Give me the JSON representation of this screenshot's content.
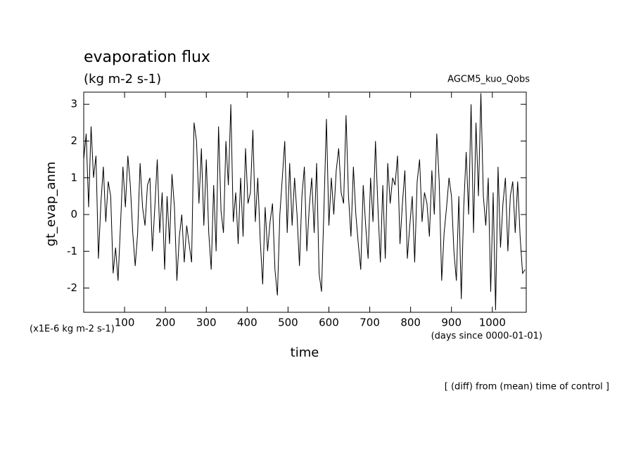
{
  "chart_data": {
    "type": "line",
    "title": "evaporation flux",
    "subtitle": "(kg m-2 s-1)",
    "annotation": "AGCM5_kuo_Qobs",
    "y_label": "gt_evap_anm",
    "y_units": "(x1E-6 kg m-2 s-1)",
    "x_label": "time",
    "x_units": "(days since 0000-01-01)",
    "footnote": "[ (diff) from (mean) time of control ]",
    "xlim": [
      0,
      1083
    ],
    "ylim": [
      -2.66,
      3.33
    ],
    "xticks": [
      100,
      200,
      300,
      400,
      500,
      600,
      700,
      800,
      900,
      1000
    ],
    "yticks": [
      -2,
      -1,
      0,
      1,
      2,
      3
    ],
    "x": [
      0,
      6,
      12,
      18,
      24,
      30,
      36,
      42,
      48,
      54,
      60,
      66,
      72,
      78,
      84,
      90,
      96,
      102,
      108,
      114,
      120,
      126,
      132,
      138,
      144,
      150,
      156,
      162,
      168,
      174,
      180,
      186,
      192,
      198,
      204,
      210,
      216,
      222,
      228,
      234,
      240,
      246,
      252,
      258,
      264,
      270,
      276,
      282,
      288,
      294,
      300,
      306,
      312,
      318,
      324,
      330,
      336,
      342,
      348,
      354,
      360,
      366,
      372,
      378,
      384,
      390,
      396,
      402,
      408,
      414,
      420,
      426,
      432,
      438,
      444,
      450,
      456,
      462,
      468,
      474,
      480,
      486,
      492,
      498,
      504,
      510,
      516,
      522,
      528,
      534,
      540,
      546,
      552,
      558,
      564,
      570,
      576,
      582,
      588,
      594,
      600,
      606,
      612,
      618,
      624,
      630,
      636,
      642,
      648,
      654,
      660,
      666,
      672,
      678,
      684,
      690,
      696,
      702,
      708,
      714,
      720,
      726,
      732,
      738,
      744,
      750,
      756,
      762,
      768,
      774,
      780,
      786,
      792,
      798,
      804,
      810,
      816,
      822,
      828,
      834,
      840,
      846,
      852,
      858,
      864,
      870,
      876,
      882,
      888,
      894,
      900,
      906,
      912,
      918,
      924,
      930,
      936,
      942,
      948,
      954,
      960,
      966,
      972,
      978,
      984,
      990,
      996,
      1002,
      1008,
      1014,
      1020,
      1026,
      1032,
      1038,
      1044,
      1050,
      1056,
      1062,
      1068,
      1074,
      1080
    ],
    "series": [
      {
        "color": "#000000",
        "values": [
          1.5,
          2.2,
          0.2,
          2.4,
          1.0,
          1.6,
          -1.2,
          0.3,
          1.3,
          -0.2,
          0.9,
          0.5,
          -1.6,
          -0.9,
          -1.8,
          -0.3,
          1.3,
          0.2,
          1.6,
          0.8,
          -0.5,
          -1.4,
          -0.5,
          1.4,
          0.2,
          -0.3,
          0.8,
          1.0,
          -1.0,
          0.2,
          1.5,
          -0.5,
          0.6,
          -1.5,
          0.5,
          -0.8,
          1.1,
          0.2,
          -1.8,
          -0.6,
          0.0,
          -1.3,
          -0.3,
          -0.8,
          -1.3,
          2.5,
          2.0,
          0.3,
          1.8,
          -0.3,
          1.5,
          -0.5,
          -1.5,
          0.8,
          -1.0,
          2.4,
          0.1,
          -0.5,
          2.0,
          0.8,
          3.0,
          -0.2,
          0.6,
          -0.8,
          1.0,
          -0.6,
          1.8,
          0.3,
          0.6,
          2.3,
          -0.2,
          1.0,
          -0.7,
          -1.9,
          0.2,
          -1.0,
          -0.2,
          0.3,
          -1.5,
          -2.2,
          0.0,
          1.0,
          2.0,
          -0.5,
          1.4,
          -0.3,
          1.0,
          0.0,
          -1.4,
          0.5,
          1.3,
          -1.0,
          0.2,
          1.0,
          -0.5,
          1.4,
          -1.6,
          -2.1,
          0.2,
          2.6,
          -0.3,
          1.0,
          0.0,
          1.2,
          1.8,
          0.6,
          0.3,
          2.7,
          0.5,
          -0.6,
          1.3,
          0.0,
          -0.8,
          -1.5,
          0.8,
          -0.3,
          -1.2,
          1.0,
          -0.2,
          2.0,
          0.2,
          -1.3,
          0.8,
          -1.2,
          1.4,
          0.3,
          1.0,
          0.8,
          1.6,
          -0.8,
          0.3,
          1.2,
          -1.2,
          -0.3,
          0.5,
          -1.3,
          0.9,
          1.5,
          -0.2,
          0.6,
          0.3,
          -0.6,
          1.2,
          0.0,
          2.2,
          0.9,
          -1.8,
          -0.5,
          0.2,
          1.0,
          0.5,
          -1.0,
          -1.8,
          0.5,
          -2.3,
          0.2,
          1.7,
          0.0,
          3.0,
          -0.5,
          2.5,
          0.5,
          3.3,
          0.5,
          -0.3,
          1.0,
          -2.1,
          0.6,
          -2.6,
          1.3,
          -0.9,
          0.3,
          1.0,
          -1.0,
          0.5,
          0.9,
          -0.5,
          0.9,
          -0.6,
          -1.6,
          -1.5
        ]
      }
    ]
  }
}
